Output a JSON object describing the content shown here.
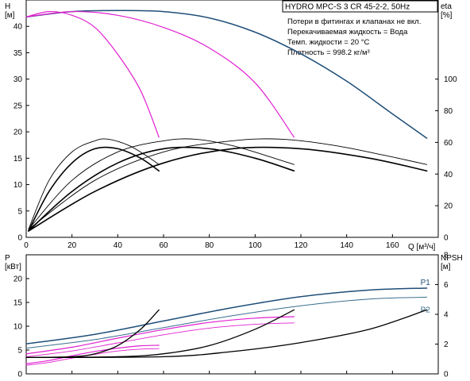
{
  "info": {
    "title": "HYDRO MPC-S 3 CR 45-2-2, 50Hz",
    "lines": [
      "Потери в фитингах и клапанах не вкл.",
      "Перекачиваемая жидкость = Вода",
      "Темп. жидкости = 20 °C",
      "Плотность = 998.2 кг/м³"
    ]
  },
  "colors": {
    "blue": "#1f4e79",
    "magenta": "#e020d0",
    "black": "#000000",
    "grey": "#555555",
    "p2": "#3a6f8f"
  },
  "chart_data": [
    {
      "type": "line",
      "xlabel": "Q [м³/ч]",
      "ylabel": "H [м]",
      "y2label": "eta [%]",
      "xlim": [
        0,
        180
      ],
      "ylim": [
        0,
        45
      ],
      "y2lim": [
        0,
        150
      ],
      "xticks": [
        0,
        20,
        40,
        60,
        80,
        100,
        120,
        140,
        160
      ],
      "yticks": [
        0,
        5,
        10,
        15,
        20,
        25,
        30,
        35,
        40
      ],
      "y2ticks": [
        0,
        20,
        40,
        60,
        80,
        100
      ],
      "series": [
        {
          "axis": "y",
          "color": "blue",
          "width": 1.5,
          "x": [
            0,
            20,
            40,
            60,
            80,
            100,
            120,
            140,
            160,
            175
          ],
          "y": [
            41.8,
            42.8,
            43,
            42.8,
            41.6,
            38.9,
            34.8,
            29.6,
            23.4,
            18.8
          ]
        },
        {
          "axis": "y",
          "color": "magenta",
          "width": 1.2,
          "x": [
            0,
            20,
            40,
            60,
            80,
            100,
            117
          ],
          "y": [
            41.8,
            42.8,
            42.1,
            39.8,
            35.9,
            29.3,
            19
          ]
        },
        {
          "axis": "y",
          "color": "magenta",
          "width": 1.2,
          "x": [
            0,
            10,
            20,
            30,
            40,
            50,
            58
          ],
          "y": [
            41.8,
            42.8,
            42.1,
            39.8,
            34.7,
            27.8,
            19
          ]
        },
        {
          "axis": "y2",
          "color": "black",
          "width": 1.6,
          "x": [
            1,
            10,
            20,
            30,
            40,
            50,
            58
          ],
          "y": [
            4,
            29,
            47,
            56,
            56,
            50,
            42
          ]
        },
        {
          "axis": "y2",
          "color": "black",
          "width": 1.6,
          "x": [
            1,
            20,
            40,
            60,
            80,
            100,
            117
          ],
          "y": [
            4,
            29,
            47,
            56,
            56,
            50,
            42
          ]
        },
        {
          "axis": "y2",
          "color": "black",
          "width": 1.6,
          "x": [
            1,
            30,
            60,
            90,
            120,
            150,
            175
          ],
          "y": [
            4,
            29,
            47,
            56,
            56,
            50,
            42
          ]
        },
        {
          "axis": "y2",
          "color": "black",
          "width": 0.9,
          "x": [
            1,
            10,
            20,
            30,
            36,
            45,
            52,
            58
          ],
          "y": [
            5,
            36,
            54,
            61,
            62,
            58,
            52,
            46
          ]
        },
        {
          "axis": "y2",
          "color": "black",
          "width": 0.9,
          "x": [
            1,
            20,
            40,
            60,
            74,
            90,
            104,
            117
          ],
          "y": [
            5,
            36,
            54,
            61,
            62,
            58,
            52,
            46
          ]
        },
        {
          "axis": "y2",
          "color": "black",
          "width": 0.9,
          "x": [
            1,
            30,
            60,
            90,
            112,
            135,
            156,
            175
          ],
          "y": [
            5,
            36,
            54,
            61,
            62,
            58,
            52,
            46
          ]
        }
      ]
    },
    {
      "type": "line",
      "xlabel": "",
      "ylabel": "P [кВт]",
      "y2label": "NPSH [м]",
      "xlim": [
        0,
        180
      ],
      "ylim": [
        0,
        25
      ],
      "y2lim": [
        0,
        8
      ],
      "yticks": [
        0,
        5,
        10,
        15,
        20
      ],
      "y2ticks": [
        0,
        2,
        4,
        6,
        8
      ],
      "series": [
        {
          "name": "P1",
          "axis": "y",
          "color": "blue",
          "width": 1.5,
          "x": [
            0,
            30,
            60,
            90,
            120,
            150,
            175
          ],
          "y": [
            6.3,
            8.3,
            11.1,
            13.9,
            16.2,
            17.6,
            18
          ]
        },
        {
          "name": "P2",
          "axis": "y",
          "color": "p2",
          "width": 1.0,
          "x": [
            0,
            30,
            60,
            90,
            120,
            150,
            175
          ],
          "y": [
            5.4,
            7.2,
            9.7,
            12.2,
            14.3,
            15.7,
            16.1
          ]
        },
        {
          "axis": "y",
          "color": "magenta",
          "width": 1.2,
          "x": [
            0,
            20,
            40,
            60,
            80,
            100,
            117
          ],
          "y": [
            4.2,
            5.6,
            7.5,
            9.3,
            10.8,
            11.7,
            12
          ]
        },
        {
          "axis": "y",
          "color": "magenta",
          "width": 0.9,
          "x": [
            0,
            20,
            40,
            60,
            80,
            100,
            117
          ],
          "y": [
            3.6,
            4.8,
            6.5,
            8.2,
            9.6,
            10.4,
            10.7
          ]
        },
        {
          "axis": "y",
          "color": "magenta",
          "width": 1.2,
          "x": [
            0,
            10,
            20,
            30,
            40,
            50,
            58
          ],
          "y": [
            2.1,
            2.8,
            3.8,
            4.7,
            5.4,
            5.9,
            6
          ]
        },
        {
          "axis": "y",
          "color": "magenta",
          "width": 0.9,
          "x": [
            0,
            10,
            20,
            30,
            40,
            50,
            58
          ],
          "y": [
            1.8,
            2.4,
            3.3,
            4.1,
            4.8,
            5.2,
            5.3
          ]
        },
        {
          "axis": "y2",
          "color": "black",
          "width": 1.3,
          "x": [
            0,
            20,
            30,
            40,
            50,
            58
          ],
          "y": [
            1.1,
            1.15,
            1.35,
            1.9,
            3.0,
            4.3
          ]
        },
        {
          "axis": "y2",
          "color": "black",
          "width": 1.3,
          "x": [
            0,
            40,
            60,
            80,
            100,
            117
          ],
          "y": [
            1.1,
            1.15,
            1.35,
            1.9,
            3.0,
            4.3
          ]
        },
        {
          "axis": "y2",
          "color": "black",
          "width": 1.3,
          "x": [
            0,
            60,
            90,
            120,
            150,
            175
          ],
          "y": [
            1.1,
            1.15,
            1.5,
            2.1,
            3.0,
            4.3
          ]
        }
      ]
    }
  ]
}
